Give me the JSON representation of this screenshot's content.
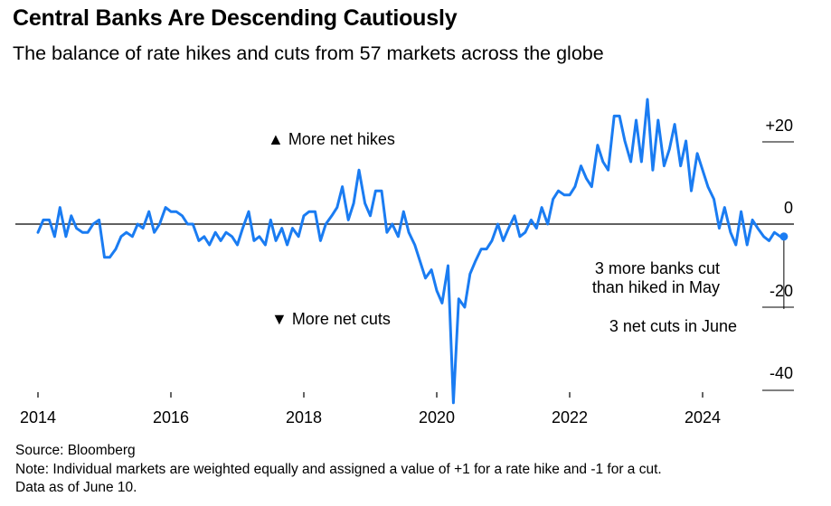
{
  "title": "Central Banks Are Descending Cautiously",
  "subtitle": "The balance of rate hikes and cuts from 57 markets across the globe",
  "footer": {
    "source": "Source: Bloomberg",
    "note": "Note: Individual markets are weighted equally and assigned a value of +1 for a rate hike and -1 for a cut.",
    "data_as_of": "Data as of June 10."
  },
  "colors": {
    "series": "#1a7cf2",
    "axis": "#000000",
    "text": "#000000"
  },
  "chart_data": {
    "type": "line",
    "title": "Central Banks Are Descending Cautiously",
    "xlabel": "",
    "ylabel": "",
    "xlim": [
      2014,
      2024.9
    ],
    "ylim": [
      -41,
      26
    ],
    "grid": false,
    "x_ticks": [
      2014,
      2016,
      2018,
      2020,
      2022,
      2024
    ],
    "x_tick_labels": [
      "2014",
      "2016",
      "2018",
      "2020",
      "2022",
      "2024"
    ],
    "y_ticks": [
      20,
      0,
      -20,
      -40
    ],
    "y_tick_labels": [
      "+20",
      "0",
      "-20",
      "-40"
    ],
    "annotations": {
      "hikes": "▲ More net hikes",
      "cuts": "▼ More net cuts",
      "may": [
        "3 more banks cut",
        "than hiked in May"
      ],
      "june": "3 net cuts in June"
    },
    "series": [
      {
        "values": [
          [
            2014.0,
            -2
          ],
          [
            2014.08,
            1
          ],
          [
            2014.17,
            1
          ],
          [
            2014.25,
            -3
          ],
          [
            2014.33,
            4
          ],
          [
            2014.42,
            -3
          ],
          [
            2014.5,
            2
          ],
          [
            2014.58,
            -1
          ],
          [
            2014.67,
            -2
          ],
          [
            2014.75,
            -2
          ],
          [
            2014.83,
            0
          ],
          [
            2014.92,
            1
          ],
          [
            2015.0,
            -8
          ],
          [
            2015.08,
            -8
          ],
          [
            2015.17,
            -6
          ],
          [
            2015.25,
            -3
          ],
          [
            2015.33,
            -2
          ],
          [
            2015.42,
            -3
          ],
          [
            2015.5,
            0
          ],
          [
            2015.58,
            -1
          ],
          [
            2015.67,
            3
          ],
          [
            2015.75,
            -2
          ],
          [
            2015.83,
            0
          ],
          [
            2015.92,
            4
          ],
          [
            2016.0,
            3
          ],
          [
            2016.08,
            3
          ],
          [
            2016.17,
            2
          ],
          [
            2016.25,
            0
          ],
          [
            2016.33,
            0
          ],
          [
            2016.42,
            -4
          ],
          [
            2016.5,
            -3
          ],
          [
            2016.58,
            -5
          ],
          [
            2016.67,
            -2
          ],
          [
            2016.75,
            -4
          ],
          [
            2016.83,
            -2
          ],
          [
            2016.92,
            -3
          ],
          [
            2017.0,
            -5
          ],
          [
            2017.08,
            -1
          ],
          [
            2017.17,
            3
          ],
          [
            2017.25,
            -4
          ],
          [
            2017.33,
            -3
          ],
          [
            2017.42,
            -5
          ],
          [
            2017.5,
            1
          ],
          [
            2017.58,
            -4
          ],
          [
            2017.67,
            -1
          ],
          [
            2017.75,
            -5
          ],
          [
            2017.83,
            -1
          ],
          [
            2017.92,
            -3
          ],
          [
            2018.0,
            2
          ],
          [
            2018.08,
            3
          ],
          [
            2018.17,
            3
          ],
          [
            2018.25,
            -4
          ],
          [
            2018.33,
            0
          ],
          [
            2018.42,
            2
          ],
          [
            2018.5,
            4
          ],
          [
            2018.58,
            9
          ],
          [
            2018.67,
            1
          ],
          [
            2018.75,
            5
          ],
          [
            2018.83,
            13
          ],
          [
            2018.92,
            5
          ],
          [
            2019.0,
            2
          ],
          [
            2019.08,
            8
          ],
          [
            2019.17,
            8
          ],
          [
            2019.25,
            -2
          ],
          [
            2019.33,
            0
          ],
          [
            2019.42,
            -3
          ],
          [
            2019.5,
            3
          ],
          [
            2019.58,
            -2
          ],
          [
            2019.67,
            -5
          ],
          [
            2019.75,
            -9
          ],
          [
            2019.83,
            -13
          ],
          [
            2019.92,
            -11
          ],
          [
            2020.0,
            -16
          ],
          [
            2020.08,
            -19
          ],
          [
            2020.17,
            -10
          ],
          [
            2020.25,
            -43
          ],
          [
            2020.33,
            -18
          ],
          [
            2020.42,
            -20
          ],
          [
            2020.5,
            -12
          ],
          [
            2020.58,
            -9
          ],
          [
            2020.67,
            -6
          ],
          [
            2020.75,
            -6
          ],
          [
            2020.83,
            -4
          ],
          [
            2020.92,
            0
          ],
          [
            2021.0,
            -4
          ],
          [
            2021.08,
            -1
          ],
          [
            2021.17,
            2
          ],
          [
            2021.25,
            -3
          ],
          [
            2021.33,
            -2
          ],
          [
            2021.42,
            1
          ],
          [
            2021.5,
            -1
          ],
          [
            2021.58,
            4
          ],
          [
            2021.67,
            0
          ],
          [
            2021.75,
            6
          ],
          [
            2021.83,
            8
          ],
          [
            2021.92,
            7
          ],
          [
            2022.0,
            7
          ],
          [
            2022.08,
            9
          ],
          [
            2022.17,
            14
          ],
          [
            2022.25,
            11
          ],
          [
            2022.33,
            9
          ],
          [
            2022.42,
            19
          ],
          [
            2022.5,
            15
          ],
          [
            2022.58,
            13
          ],
          [
            2022.67,
            26
          ],
          [
            2022.75,
            26
          ],
          [
            2022.83,
            20
          ],
          [
            2022.92,
            15
          ],
          [
            2023.0,
            25
          ],
          [
            2023.08,
            15
          ],
          [
            2023.17,
            30
          ],
          [
            2023.25,
            13
          ],
          [
            2023.33,
            25
          ],
          [
            2023.42,
            14
          ],
          [
            2023.5,
            18
          ],
          [
            2023.58,
            24
          ],
          [
            2023.67,
            14
          ],
          [
            2023.75,
            20
          ],
          [
            2023.83,
            8
          ],
          [
            2023.92,
            17
          ],
          [
            2024.0,
            13
          ],
          [
            2024.08,
            9
          ],
          [
            2024.17,
            6
          ],
          [
            2024.25,
            -1
          ],
          [
            2024.33,
            4
          ],
          [
            2024.42,
            -2
          ],
          [
            2024.5,
            -5
          ],
          [
            2024.58,
            3
          ],
          [
            2024.67,
            -5
          ],
          [
            2024.75,
            1
          ],
          [
            2024.83,
            -1
          ],
          [
            2024.92,
            -3
          ],
          [
            2025.0,
            -4
          ],
          [
            2025.08,
            -2
          ],
          [
            2025.17,
            -3
          ],
          [
            2025.25,
            -3
          ]
        ]
      }
    ]
  }
}
